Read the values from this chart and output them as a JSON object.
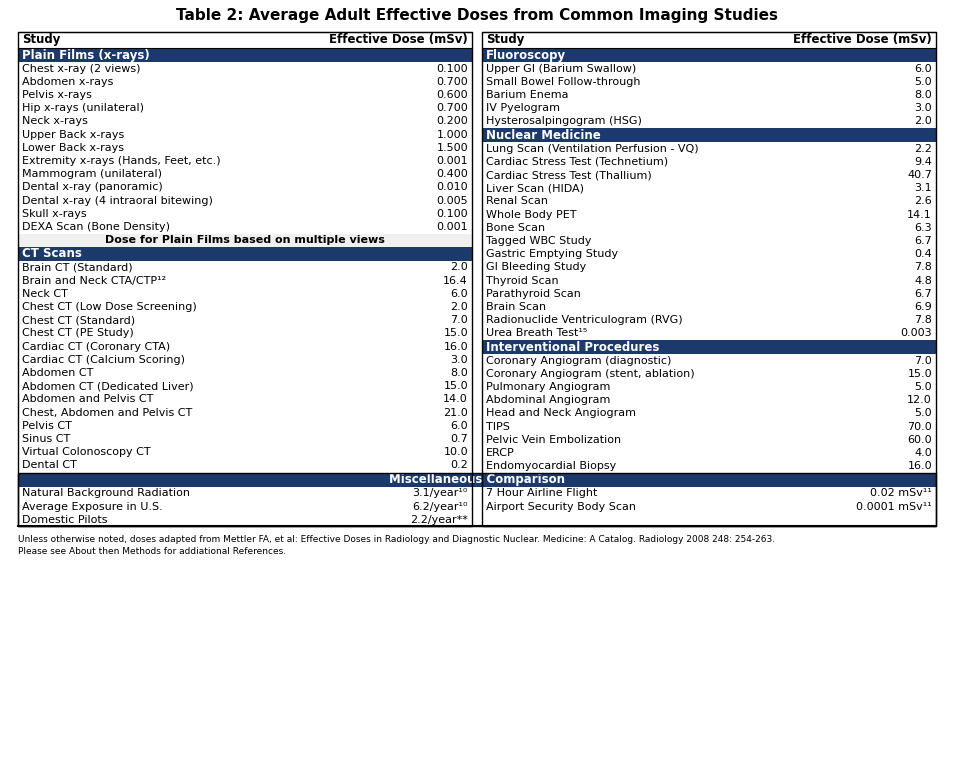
{
  "title": "Table 2: Average Adult Effective Doses from Common Imaging Studies",
  "section_bg": "#1B3A6B",
  "section_text": "#ffffff",
  "row_text": "#000000",
  "col_headers": [
    "Study",
    "Effective Dose (mSv)",
    "Study",
    "Effective Dose (mSv)"
  ],
  "left_sections": [
    {
      "name": "Plain Films (x-rays)",
      "is_note": false,
      "rows": [
        [
          "Chest x-ray (2 views)",
          "0.100"
        ],
        [
          "Abdomen x-rays",
          "0.700"
        ],
        [
          "Pelvis x-rays",
          "0.600"
        ],
        [
          "Hip x-rays (unilateral)",
          "0.700"
        ],
        [
          "Neck x-rays",
          "0.200"
        ],
        [
          "Upper Back x-rays",
          "1.000"
        ],
        [
          "Lower Back x-rays",
          "1.500"
        ],
        [
          "Extremity x-rays (Hands, Feet, etc.)",
          "0.001"
        ],
        [
          "Mammogram (unilateral)",
          "0.400"
        ],
        [
          "Dental x-ray (panoramic)",
          "0.010"
        ],
        [
          "Dental x-ray (4 intraoral bitewing)",
          "0.005"
        ],
        [
          "Skull x-rays",
          "0.100"
        ],
        [
          "DEXA Scan (Bone Density)",
          "0.001"
        ]
      ]
    },
    {
      "name": "Dose for Plain Films based on multiple views",
      "is_note": true,
      "rows": []
    },
    {
      "name": "CT Scans",
      "is_note": false,
      "rows": [
        [
          "Brain CT (Standard)",
          "2.0"
        ],
        [
          "Brain and Neck CTA/CTP¹²",
          "16.4"
        ],
        [
          "Neck CT",
          "6.0"
        ],
        [
          "Chest CT (Low Dose Screening)",
          "2.0"
        ],
        [
          "Chest CT (Standard)",
          "7.0"
        ],
        [
          "Chest CT (PE Study)",
          "15.0"
        ],
        [
          "Cardiac CT (Coronary CTA)",
          "16.0"
        ],
        [
          "Cardiac CT (Calcium Scoring)",
          "3.0"
        ],
        [
          "Abdomen CT",
          "8.0"
        ],
        [
          "Abdomen CT (Dedicated Liver)",
          "15.0"
        ],
        [
          "Abdomen and Pelvis CT",
          "14.0"
        ],
        [
          "Chest, Abdomen and Pelvis CT",
          "21.0"
        ],
        [
          "Pelvis CT",
          "6.0"
        ],
        [
          "Sinus CT",
          "0.7"
        ],
        [
          "Virtual Colonoscopy CT",
          "10.0"
        ],
        [
          "Dental CT",
          "0.2"
        ]
      ]
    }
  ],
  "right_sections": [
    {
      "name": "Fluoroscopy",
      "rows": [
        [
          "Upper GI (Barium Swallow)",
          "6.0"
        ],
        [
          "Small Bowel Follow-through",
          "5.0"
        ],
        [
          "Barium Enema",
          "8.0"
        ],
        [
          "IV Pyelogram",
          "3.0"
        ],
        [
          "Hysterosalpingogram (HSG)",
          "2.0"
        ]
      ]
    },
    {
      "name": "Nuclear Medicine",
      "rows": [
        [
          "Lung Scan (Ventilation Perfusion - VQ)",
          "2.2"
        ],
        [
          "Cardiac Stress Test (Technetium)",
          "9.4"
        ],
        [
          "Cardiac Stress Test (Thallium)",
          "40.7"
        ],
        [
          "Liver Scan (HIDA)",
          "3.1"
        ],
        [
          "Renal Scan",
          "2.6"
        ],
        [
          "Whole Body PET",
          "14.1"
        ],
        [
          "Bone Scan",
          "6.3"
        ],
        [
          "Tagged WBC Study",
          "6.7"
        ],
        [
          "Gastric Emptying Study",
          "0.4"
        ],
        [
          "GI Bleeding Study",
          "7.8"
        ],
        [
          "Thyroid Scan",
          "4.8"
        ],
        [
          "Parathyroid Scan",
          "6.7"
        ],
        [
          "Brain Scan",
          "6.9"
        ],
        [
          "Radionuclide Ventriculogram (RVG)",
          "7.8"
        ],
        [
          "Urea Breath Test¹⁵",
          "0.003"
        ]
      ]
    },
    {
      "name": "Interventional Procedures",
      "rows": [
        [
          "Coronary Angiogram (diagnostic)",
          "7.0"
        ],
        [
          "Coronary Angiogram (stent, ablation)",
          "15.0"
        ],
        [
          "Pulmonary Angiogram",
          "5.0"
        ],
        [
          "Abdominal Angiogram",
          "12.0"
        ],
        [
          "Head and Neck Angiogram",
          "5.0"
        ],
        [
          "TIPS",
          "70.0"
        ],
        [
          "Pelvic Vein Embolization",
          "60.0"
        ],
        [
          "ERCP",
          "4.0"
        ],
        [
          "Endomyocardial Biopsy",
          "16.0"
        ]
      ]
    }
  ],
  "misc_rows_left": [
    [
      "Natural Background Radiation",
      "3.1/year¹⁰"
    ],
    [
      "Average Exposure in U.S.",
      "6.2/year¹⁰"
    ],
    [
      "Domestic Pilots",
      "2.2/year**"
    ]
  ],
  "misc_rows_right": [
    [
      "7 Hour Airline Flight",
      "0.02 mSv¹¹"
    ],
    [
      "Airport Security Body Scan",
      "0.0001 mSv¹¹"
    ]
  ],
  "footnote1": "Unless otherwise noted, doses adapted from Mettler FA, et al: Effective Doses in Radiology and Diagnostic Nuclear. Medicine: A Catalog. Radiology 2008 248: 254-263.",
  "footnote2": "Please see About then Methods for addiational References."
}
